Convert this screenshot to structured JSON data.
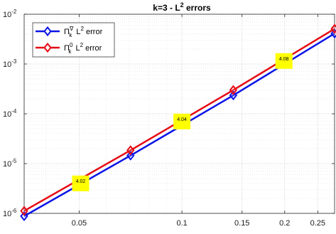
{
  "chart_data": {
    "type": "line",
    "title": "k=3 - L",
    "title_sup": "2",
    "title_tail": " errors",
    "xscale": "log",
    "yscale": "log",
    "xlim": [
      0.0345,
      0.28
    ],
    "ylim": [
      1e-06,
      0.01
    ],
    "xticks": [
      0.05,
      0.1,
      0.15,
      0.2,
      0.25
    ],
    "xtick_labels": [
      "0.05",
      "0.1",
      "0.15",
      "0.2",
      "0.25"
    ],
    "yticks": [
      1e-06,
      1e-05,
      0.0001,
      0.001,
      0.01
    ],
    "ytick_base": "10",
    "ytick_exponents": [
      "-6",
      "-5",
      "-4",
      "-3",
      "-2"
    ],
    "grid": true,
    "legend_position": "top-left",
    "series": [
      {
        "name_main": "Π",
        "name_sup": "∇",
        "name_sub": "k",
        "name_tail": " L",
        "name_tail_sup": "2",
        "name_end": " error",
        "color": "#0a14e6",
        "marker": "diamond",
        "x": [
          0.0345,
          0.0707,
          0.1414,
          0.28
        ],
        "y": [
          8.8e-07,
          1.45e-05,
          0.000235,
          0.0041
        ]
      },
      {
        "name_main": "Π",
        "name_sup": "0",
        "name_sub": "k",
        "name_tail": " L",
        "name_tail_sup": "2",
        "name_end": " error",
        "color": "#e60a14",
        "marker": "diamond",
        "x": [
          0.0345,
          0.0707,
          0.1414,
          0.28
        ],
        "y": [
          1.12e-06,
          1.85e-05,
          0.0003,
          0.0051
        ]
      }
    ],
    "annotations": [
      {
        "text": "4.02",
        "x": 0.0505,
        "y": 4e-06
      },
      {
        "text": "4.04",
        "x": 0.1,
        "y": 7e-05
      },
      {
        "text": "4.08",
        "x": 0.199,
        "y": 0.00115
      }
    ],
    "annotation_color": "#ffff00"
  }
}
